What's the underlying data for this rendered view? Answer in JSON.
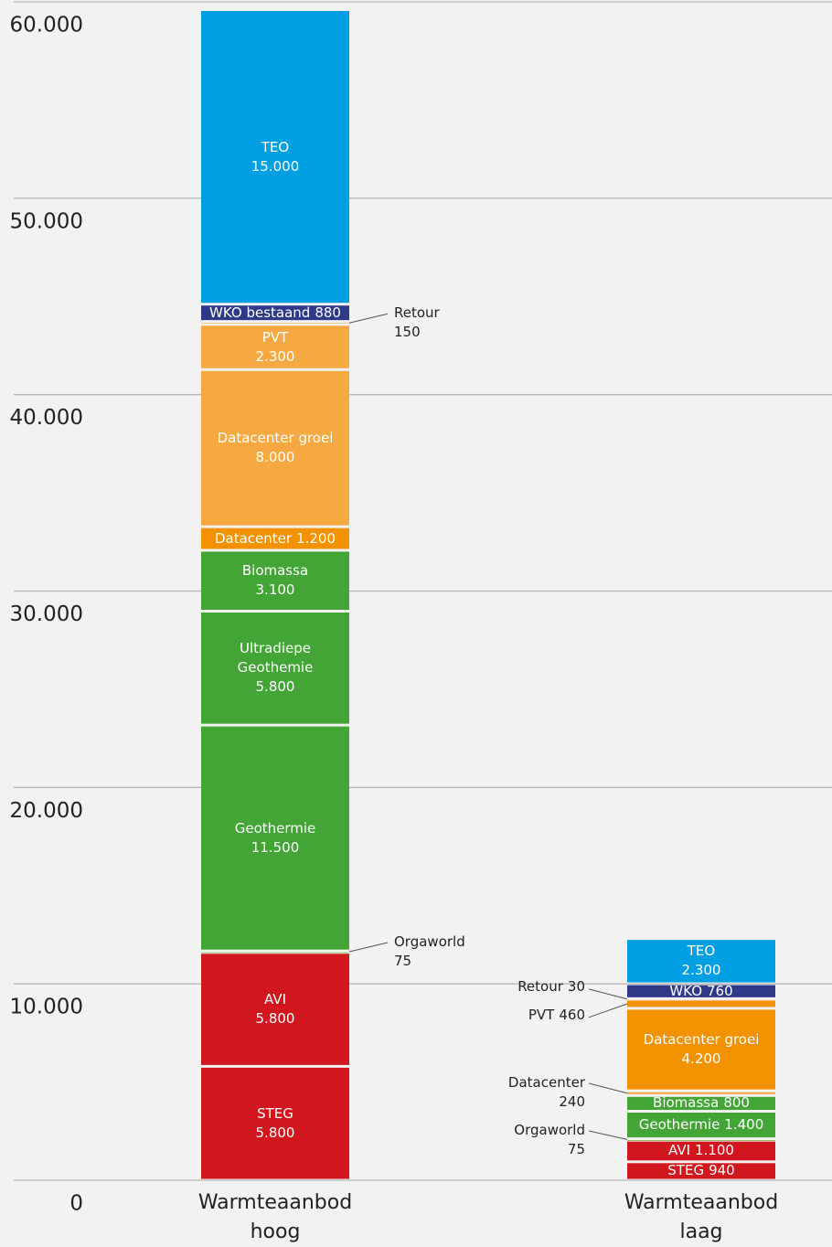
{
  "chart_data": {
    "type": "stacked_bar",
    "categories": [
      "Warmteaanbod hoog",
      "Warmteaanbod laag"
    ],
    "ylim": [
      0,
      60000
    ],
    "yticks": [
      0,
      {
        "value": 10000,
        "label": "10.000"
      },
      {
        "value": 20000,
        "label": "20.000"
      },
      {
        "value": 30000,
        "label": "30.000"
      },
      {
        "value": 40000,
        "label": "40.000"
      },
      {
        "value": 50000,
        "label": "50.000"
      },
      {
        "value": 60000,
        "label": "60.000"
      }
    ],
    "grid": true,
    "stacks": [
      {
        "segments": [
          {
            "name": "STEG",
            "value": 5800,
            "value_label": "5.800",
            "color": "#d2161e"
          },
          {
            "name": "AVI",
            "value": 5800,
            "value_label": "5.800",
            "color": "#d2161e"
          },
          {
            "name": "Orgaworld",
            "value": 75,
            "value_label": "75",
            "color": "#7ab648"
          },
          {
            "name": "Geothermie",
            "value": 11500,
            "value_label": "11.500",
            "color": "#43a535"
          },
          {
            "name": "Ultradiepe Geothemie",
            "value": 5800,
            "value_label": "5.800",
            "color": "#43a535"
          },
          {
            "name": "Biomassa",
            "value": 3100,
            "value_label": "3.100",
            "color": "#43a535"
          },
          {
            "name": "Datacenter",
            "value": 1200,
            "value_label": "1.200",
            "color": "#f39200"
          },
          {
            "name": "Datacenter groei",
            "value": 8000,
            "value_label": "8.000",
            "color": "#f6a941"
          },
          {
            "name": "PVT",
            "value": 2300,
            "value_label": "2.300",
            "color": "#f6a941"
          },
          {
            "name": "Retour",
            "value": 150,
            "value_label": "150",
            "color": "#f8c27a"
          },
          {
            "name": "WKO bestaand",
            "value": 880,
            "value_label": "880",
            "color": "#2e3a87"
          },
          {
            "name": "TEO",
            "value": 15000,
            "value_label": "15.000",
            "color": "#009fe3"
          }
        ]
      },
      {
        "segments": [
          {
            "name": "STEG",
            "value": 940,
            "value_label": "940",
            "color": "#d2161e"
          },
          {
            "name": "AVI",
            "value": 1100,
            "value_label": "1.100",
            "color": "#d2161e"
          },
          {
            "name": "Orgaworld",
            "value": 75,
            "value_label": "75",
            "color": "#7ab648"
          },
          {
            "name": "Geothermie",
            "value": 1400,
            "value_label": "1.400",
            "color": "#43a535"
          },
          {
            "name": "Biomassa",
            "value": 800,
            "value_label": "800",
            "color": "#43a535"
          },
          {
            "name": "Datacenter",
            "value": 240,
            "value_label": "240",
            "color": "#f6a941"
          },
          {
            "name": "Datacenter groei",
            "value": 4200,
            "value_label": "4.200",
            "color": "#f39200"
          },
          {
            "name": "PVT",
            "value": 460,
            "value_label": "460",
            "color": "#f39200"
          },
          {
            "name": "Retour",
            "value": 30,
            "value_label": "30",
            "color": "#f8c27a"
          },
          {
            "name": "WKO",
            "value": 760,
            "value_label": "760",
            "color": "#2e3a87"
          },
          {
            "name": "TEO",
            "value": 2300,
            "value_label": "2.300",
            "color": "#009fe3"
          }
        ]
      }
    ]
  }
}
